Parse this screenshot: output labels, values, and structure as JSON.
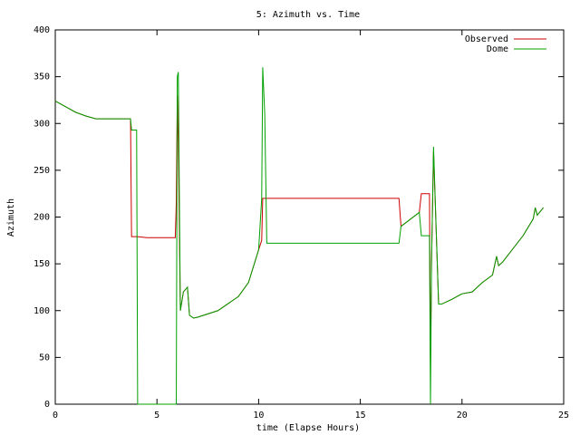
{
  "chart_data": {
    "type": "line",
    "title": "5: Azimuth vs. Time",
    "x_label": "time (Elapse Hours)",
    "y_label": "Azimuth",
    "x": [
      0,
      0.5,
      1,
      1.5,
      2,
      3.7,
      3.75,
      3.8,
      4.0,
      4.05,
      4.5,
      5.9,
      5.95,
      6.0,
      6.05,
      6.15,
      6.3,
      6.5,
      6.6,
      6.8,
      7,
      8,
      9,
      9.5,
      10,
      10.15,
      10.2,
      10.3,
      10.4,
      16.9,
      17.0,
      17.9,
      18.0,
      18.4,
      18.45,
      18.5,
      18.6,
      18.85,
      19,
      19.5,
      20,
      20.5,
      21,
      21.5,
      21.7,
      21.8,
      22,
      23,
      23.5,
      23.6,
      23.7,
      24
    ],
    "series": [
      {
        "name": "Observed",
        "color": "#cc0000",
        "values": [
          324,
          318,
          312,
          308,
          305,
          305,
          179,
          179,
          179,
          179,
          178,
          178,
          215,
          330,
          280,
          100,
          120,
          125,
          95,
          92,
          93,
          100,
          115,
          130,
          165,
          175,
          220,
          220,
          220,
          220,
          190,
          205,
          225,
          225,
          40,
          150,
          270,
          107,
          107,
          112,
          118,
          120,
          130,
          138,
          158,
          148,
          152,
          180,
          198,
          210,
          202,
          210
        ]
      },
      {
        "name": "Dome",
        "color": "#00a000",
        "values": [
          324,
          318,
          312,
          308,
          305,
          305,
          293,
          293,
          293,
          0,
          0,
          0,
          0,
          350,
          355,
          100,
          120,
          125,
          95,
          92,
          93,
          100,
          115,
          130,
          165,
          220,
          360,
          310,
          172,
          172,
          190,
          205,
          180,
          180,
          0,
          150,
          275,
          107,
          107,
          112,
          118,
          120,
          130,
          138,
          158,
          148,
          152,
          180,
          198,
          210,
          202,
          210
        ]
      }
    ],
    "xlim": [
      0,
      25
    ],
    "xticks": [
      0,
      5,
      10,
      15,
      20,
      25
    ],
    "ylim": [
      0,
      400
    ],
    "yticks": [
      0,
      50,
      100,
      150,
      200,
      250,
      300,
      350,
      400
    ],
    "legend": "top-right",
    "grid": false
  }
}
